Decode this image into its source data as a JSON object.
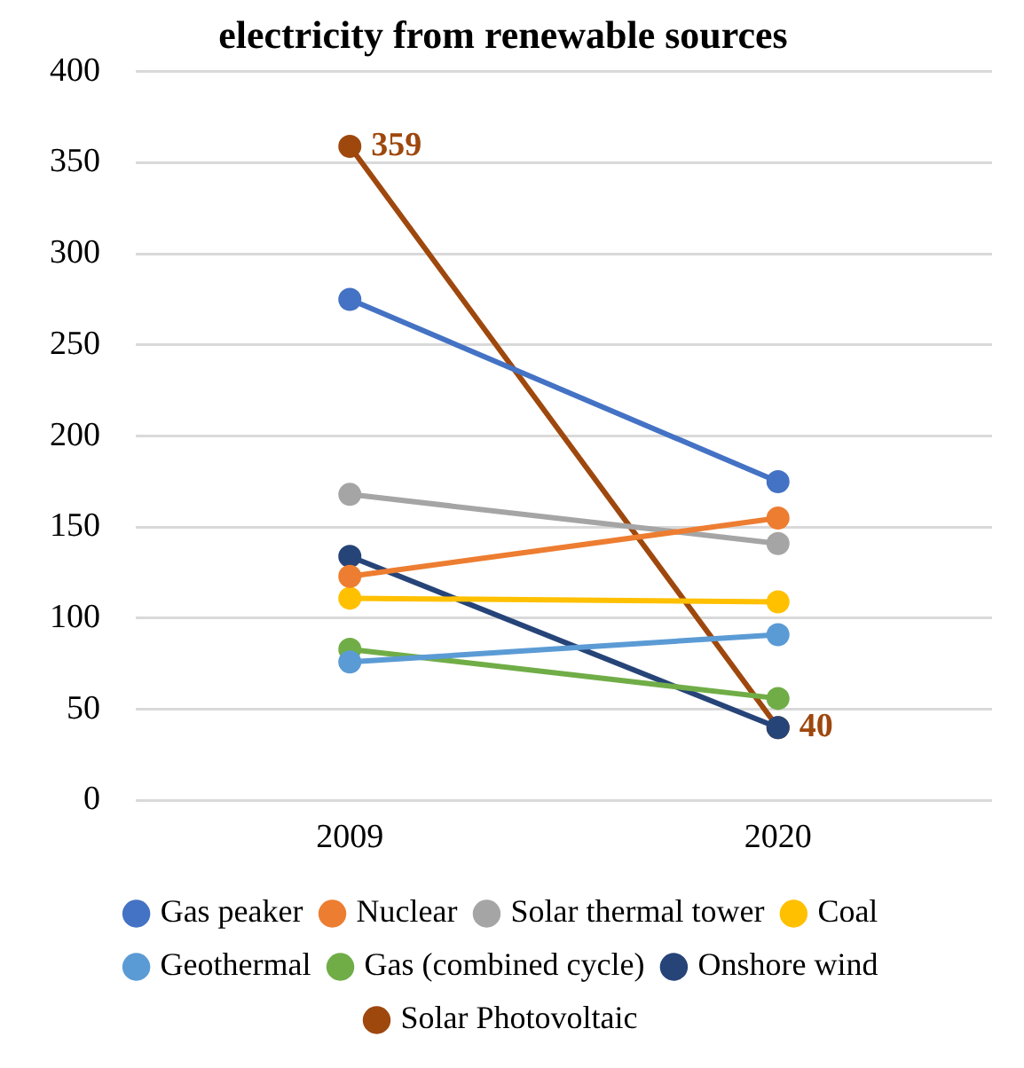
{
  "chart_data": {
    "type": "line",
    "title": "electricity from renewable sources",
    "categories": [
      "2009",
      "2020"
    ],
    "series": [
      {
        "name": "Gas peaker",
        "color": "#4472c4",
        "values": [
          275,
          175
        ]
      },
      {
        "name": "Nuclear",
        "color": "#ed7d31",
        "values": [
          123,
          155
        ]
      },
      {
        "name": "Solar thermal tower",
        "color": "#a5a5a5",
        "values": [
          168,
          141
        ]
      },
      {
        "name": "Coal",
        "color": "#ffc000",
        "values": [
          111,
          109
        ]
      },
      {
        "name": "Geothermal",
        "color": "#5b9bd5",
        "values": [
          76,
          91
        ]
      },
      {
        "name": "Gas (combined cycle)",
        "color": "#70ad47",
        "values": [
          83,
          56
        ]
      },
      {
        "name": "Onshore wind",
        "color": "#264478",
        "values": [
          134,
          40
        ]
      },
      {
        "name": "Solar Photovoltaic",
        "color": "#9e480e",
        "values": [
          359,
          40
        ],
        "value_labels": [
          "359",
          "40"
        ]
      }
    ],
    "ylim": [
      0,
      400
    ],
    "yticks": [
      0,
      50,
      100,
      150,
      200,
      250,
      300,
      350,
      400
    ],
    "grid": "y",
    "legend": "bottom",
    "marker": "circle",
    "line_style": "solid"
  }
}
